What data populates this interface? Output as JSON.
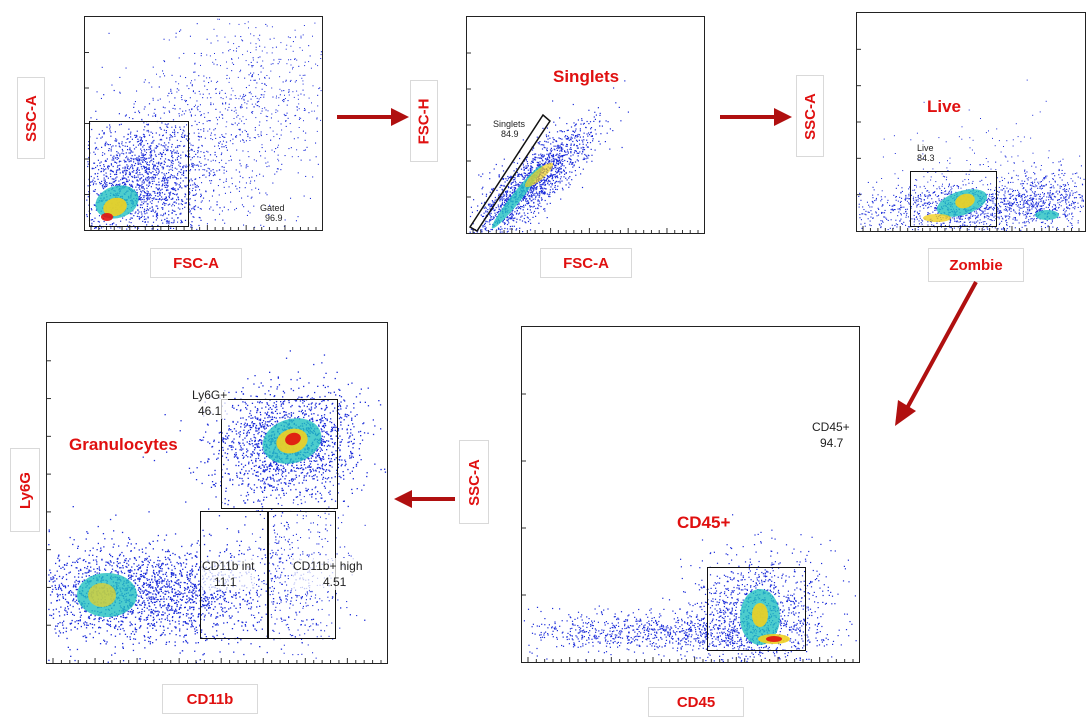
{
  "panels": {
    "fsc_ssc": {
      "y_label": "SSC-A",
      "x_label": "FSC-A",
      "gate_name": "Gated",
      "gate_value": "96.9"
    },
    "singlets": {
      "title": "Singlets",
      "y_label": "FSC-H",
      "x_label": "FSC-A",
      "gate_name": "Singlets",
      "gate_value": "84.9"
    },
    "live": {
      "title": "Live",
      "y_label": "SSC-A",
      "x_label": "Zombie",
      "gate_name": "Live",
      "gate_value": "84.3"
    },
    "cd45": {
      "title": "CD45+",
      "y_label": "SSC-A",
      "x_label": "CD45",
      "gate_name": "CD45+",
      "gate_value": "94.7"
    },
    "granulocytes": {
      "title": "Granulocytes",
      "y_label": "Ly6G",
      "x_label": "CD11b",
      "gates": [
        {
          "name": "Ly6G+",
          "value": "46.1"
        },
        {
          "name": "CD11b int",
          "value": "11.1"
        },
        {
          "name": "CD11b+ high",
          "value": "4.51"
        }
      ]
    }
  },
  "colors": {
    "label_red": "#e01010",
    "arrow_red": "#b01010",
    "density_low": "#1a2bd9",
    "density_mid": "#20c0c0",
    "density_high": "#f0d020",
    "density_peak": "#e01010"
  }
}
